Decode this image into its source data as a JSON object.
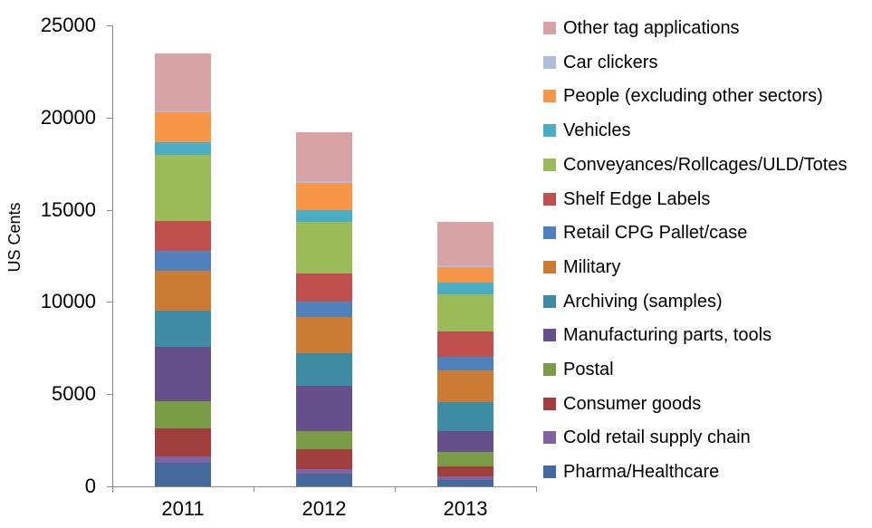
{
  "chart_data": {
    "type": "bar",
    "stacked": true,
    "title": "",
    "xlabel": "",
    "ylabel": "US Cents",
    "ylim": [
      0,
      25000
    ],
    "yticks": [
      0,
      5000,
      10000,
      15000,
      20000,
      25000
    ],
    "categories": [
      "2011",
      "2012",
      "2013"
    ],
    "grid": false,
    "legend_position": "right",
    "legend_order": "reverse of stacking (top legend item = top bar segment)",
    "series": [
      {
        "name": "Pharma/Healthcare",
        "color": "#44699D",
        "values": [
          1300,
          700,
          350
        ]
      },
      {
        "name": "Cold retail supply chain",
        "color": "#8064A2",
        "values": [
          300,
          250,
          200
        ]
      },
      {
        "name": "Consumer goods",
        "color": "#A03F3D",
        "values": [
          1550,
          1050,
          550
        ]
      },
      {
        "name": "Postal",
        "color": "#7B9C46",
        "values": [
          1450,
          1000,
          750
        ]
      },
      {
        "name": "Manufacturing parts, tools",
        "color": "#65508C",
        "values": [
          2950,
          2450,
          1150
        ]
      },
      {
        "name": "Archiving (samples)",
        "color": "#3D8CA3",
        "values": [
          2000,
          1750,
          1550
        ]
      },
      {
        "name": "Military",
        "color": "#CB7B33",
        "values": [
          2150,
          2000,
          1750
        ]
      },
      {
        "name": "Retail CPG Pallet/case",
        "color": "#4F81BD",
        "values": [
          1050,
          800,
          700
        ]
      },
      {
        "name": "Shelf Edge Labels",
        "color": "#C0504D",
        "values": [
          1650,
          1550,
          1400
        ]
      },
      {
        "name": "Conveyances/Rollcages/ULD/Totes",
        "color": "#9BBB59",
        "values": [
          3600,
          2800,
          2000
        ]
      },
      {
        "name": "Vehicles",
        "color": "#4BACC6",
        "values": [
          650,
          650,
          650
        ]
      },
      {
        "name": "People (excluding other sectors)",
        "color": "#F79646",
        "values": [
          1650,
          1450,
          850
        ]
      },
      {
        "name": "Car clickers",
        "color": "#AFBCDB",
        "values": [
          50,
          100,
          100
        ]
      },
      {
        "name": "Other tag applications",
        "color": "#D8A3A4",
        "values": [
          3150,
          2650,
          2350
        ]
      }
    ]
  },
  "style": {
    "axis_color": "#8A8A8A",
    "text_color": "#000000",
    "background": "#FFFFFF"
  }
}
